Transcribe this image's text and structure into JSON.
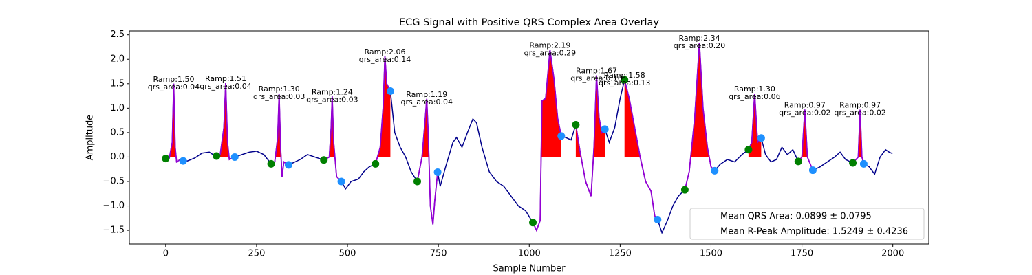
{
  "chart_data": {
    "type": "line",
    "title": "ECG Signal with Positive QRS Complex Area Overlay",
    "x_label": "Sample Number",
    "y_label": "Amplitude",
    "xlim": [
      -100,
      2099
    ],
    "ylim": [
      -1.78,
      2.58
    ],
    "xticks": [
      0,
      250,
      500,
      750,
      1000,
      1250,
      1500,
      1750,
      2000
    ],
    "yticks": [
      {
        "value": -1.5,
        "label": "−1.5"
      },
      {
        "value": -1,
        "label": "−1.0"
      },
      {
        "value": -0.5,
        "label": "−0.5"
      },
      {
        "value": 0,
        "label": "0.0"
      },
      0.5,
      {
        "value": 1,
        "label": "1.0"
      },
      1.5,
      {
        "value": 2,
        "label": "2.0"
      },
      2.5
    ],
    "series": [
      {
        "color": "#00008b",
        "x": [
          0,
          10,
          18,
          22,
          26,
          30,
          40,
          48,
          60,
          80,
          100,
          120,
          130,
          140,
          150,
          160,
          165,
          170,
          175,
          190,
          210,
          230,
          250,
          270,
          290,
          300,
          308,
          312,
          316,
          320,
          325,
          338,
          350,
          370,
          390,
          410,
          435,
          450,
          455,
          458,
          462,
          470,
          483,
          495,
          510,
          530,
          545,
          560,
          577,
          590,
          598,
          603,
          608,
          618,
          630,
          645,
          660,
          675,
          692,
          705,
          714,
          718,
          722,
          728,
          735,
          740,
          748,
          755,
          770,
          790,
          800,
          815,
          830,
          845,
          855,
          870,
          890,
          910,
          930,
          950,
          970,
          990,
          1010,
          1020,
          1030,
          1035,
          1045,
          1057,
          1068,
          1078,
          1088,
          1100,
          1115,
          1128,
          1140,
          1155,
          1170,
          1178,
          1185,
          1192,
          1200,
          1208,
          1220,
          1235,
          1250,
          1262,
          1275,
          1290,
          1305,
          1320,
          1335,
          1345,
          1353,
          1365,
          1380,
          1395,
          1410,
          1428,
          1440,
          1455,
          1468,
          1478,
          1490,
          1500,
          1510,
          1525,
          1545,
          1565,
          1585,
          1603,
          1612,
          1620,
          1628,
          1638,
          1650,
          1665,
          1680,
          1695,
          1710,
          1725,
          1740,
          1750,
          1758,
          1765,
          1780,
          1800,
          1820,
          1840,
          1855,
          1870,
          1890,
          1905,
          1910,
          1915,
          1920,
          1935,
          1950,
          1965,
          1980,
          1990,
          1999
        ],
        "values": [
          -0.03,
          -0.02,
          0.3,
          1.5,
          0.2,
          -0.1,
          -0.05,
          -0.08,
          -0.08,
          -0.02,
          0.08,
          0.1,
          0.05,
          0.02,
          0.05,
          0.6,
          1.51,
          0.3,
          -0.05,
          0.0,
          0.05,
          0.1,
          0.12,
          0.05,
          -0.14,
          -0.1,
          0.4,
          1.3,
          0.2,
          -0.4,
          -0.1,
          -0.16,
          -0.12,
          -0.05,
          0.05,
          0.0,
          -0.06,
          0.0,
          0.6,
          1.24,
          0.3,
          -0.4,
          -0.5,
          -0.65,
          -0.5,
          -0.45,
          -0.3,
          -0.2,
          -0.14,
          0.2,
          1.0,
          2.06,
          1.5,
          1.35,
          0.5,
          0.2,
          0.0,
          -0.3,
          -0.5,
          0.0,
          0.8,
          1.19,
          0.5,
          -1.0,
          -1.38,
          -0.9,
          -0.31,
          -0.6,
          -0.2,
          0.3,
          0.4,
          0.2,
          0.5,
          0.78,
          0.7,
          0.2,
          -0.3,
          -0.5,
          -0.6,
          -0.8,
          -1.0,
          -1.1,
          -1.34,
          -1.5,
          -1.3,
          1.15,
          1.2,
          2.19,
          1.6,
          0.8,
          0.43,
          0.4,
          0.35,
          0.66,
          0.1,
          -0.5,
          -0.8,
          0.2,
          1.67,
          0.8,
          0.5,
          0.57,
          0.3,
          0.6,
          1.2,
          1.58,
          1.2,
          0.6,
          0.0,
          -0.5,
          -0.7,
          -1.2,
          -1.28,
          -1.55,
          -1.3,
          -1.0,
          -0.8,
          -0.67,
          -0.3,
          0.8,
          2.34,
          1.0,
          0.2,
          -0.2,
          -0.28,
          -0.15,
          -0.05,
          -0.1,
          0.05,
          0.15,
          0.3,
          1.3,
          0.3,
          0.39,
          0.05,
          -0.1,
          -0.05,
          0.2,
          0.05,
          0.15,
          -0.09,
          0.0,
          0.97,
          0.0,
          -0.27,
          -0.2,
          -0.1,
          0.0,
          0.1,
          -0.05,
          -0.12,
          0.0,
          0.97,
          0.0,
          -0.14,
          -0.2,
          -0.35,
          0.0,
          0.15,
          0.1,
          0.07
        ]
      }
    ],
    "qrs_color": "#9400d3",
    "area_color": "#ff0000",
    "onset_color": "#008000",
    "offset_color": "#1e90ff",
    "beats": [
      {
        "onset": {
          "x": 0,
          "y": -0.03
        },
        "offset": {
          "x": 48,
          "y": -0.08
        },
        "r_peak": {
          "x": 22,
          "y": 1.5
        },
        "annotation": [
          "Ramp:1.50",
          "qrs_area:0.04"
        ]
      },
      {
        "onset": {
          "x": 140,
          "y": 0.02
        },
        "offset": {
          "x": 190,
          "y": 0.0
        },
        "r_peak": {
          "x": 165,
          "y": 1.51
        },
        "annotation": [
          "Ramp:1.51",
          "qrs_area:0.04"
        ]
      },
      {
        "onset": {
          "x": 290,
          "y": -0.14
        },
        "offset": {
          "x": 338,
          "y": -0.16
        },
        "r_peak": {
          "x": 312,
          "y": 1.3
        },
        "annotation": [
          "Ramp:1.30",
          "qrs_area:0.03"
        ]
      },
      {
        "onset": {
          "x": 435,
          "y": -0.06
        },
        "offset": {
          "x": 483,
          "y": -0.5
        },
        "r_peak": {
          "x": 458,
          "y": 1.24
        },
        "annotation": [
          "Ramp:1.24",
          "qrs_area:0.03"
        ]
      },
      {
        "onset": {
          "x": 577,
          "y": -0.14
        },
        "offset": {
          "x": 618,
          "y": 1.35
        },
        "r_peak": {
          "x": 603,
          "y": 2.06
        },
        "annotation": [
          "Ramp:2.06",
          "qrs_area:0.14"
        ]
      },
      {
        "onset": {
          "x": 692,
          "y": -0.5
        },
        "offset": {
          "x": 748,
          "y": -0.31
        },
        "r_peak": {
          "x": 718,
          "y": 1.19
        },
        "annotation": [
          "Ramp:1.19",
          "qrs_area:0.04"
        ]
      },
      {
        "onset": {
          "x": 1010,
          "y": -1.34
        },
        "offset": {
          "x": 1088,
          "y": 0.43
        },
        "r_peak": {
          "x": 1057,
          "y": 2.19
        },
        "annotation": [
          "Ramp:2.19",
          "qrs_area:0.29"
        ]
      },
      {
        "onset": {
          "x": 1128,
          "y": 0.66
        },
        "offset": {
          "x": 1208,
          "y": 0.57
        },
        "r_peak": {
          "x": 1185,
          "y": 1.67
        },
        "annotation": [
          "Ramp:1.67",
          "qrs_area:0.10"
        ]
      },
      {
        "onset": {
          "x": 1262,
          "y": 1.58
        },
        "offset": {
          "x": 1353,
          "y": -1.28
        },
        "r_peak": {
          "x": 1262,
          "y": 1.58
        },
        "annotation": [
          "Ramp:1.58",
          "qrs_area:0.13"
        ]
      },
      {
        "onset": {
          "x": 1428,
          "y": -0.67
        },
        "offset": {
          "x": 1510,
          "y": -0.28
        },
        "r_peak": {
          "x": 1468,
          "y": 2.34
        },
        "annotation": [
          "Ramp:2.34",
          "qrs_area:0.20"
        ]
      },
      {
        "onset": {
          "x": 1603,
          "y": 0.15
        },
        "offset": {
          "x": 1638,
          "y": 0.39
        },
        "r_peak": {
          "x": 1620,
          "y": 1.3
        },
        "annotation": [
          "Ramp:1.30",
          "qrs_area:0.06"
        ]
      },
      {
        "onset": {
          "x": 1740,
          "y": -0.09
        },
        "offset": {
          "x": 1780,
          "y": -0.27
        },
        "r_peak": {
          "x": 1758,
          "y": 0.97
        },
        "annotation": [
          "Ramp:0.97",
          "qrs_area:0.02"
        ]
      },
      {
        "onset": {
          "x": 1890,
          "y": -0.12
        },
        "offset": {
          "x": 1920,
          "y": -0.14
        },
        "r_peak": {
          "x": 1910,
          "y": 0.97
        },
        "annotation": [
          "Ramp:0.97",
          "qrs_area:0.02"
        ]
      }
    ],
    "legend": [
      "Mean QRS Area: 0.0899 ± 0.0795",
      "Mean R-Peak Amplitude: 1.5249 ± 0.4236"
    ],
    "legend_position": "lower right"
  }
}
